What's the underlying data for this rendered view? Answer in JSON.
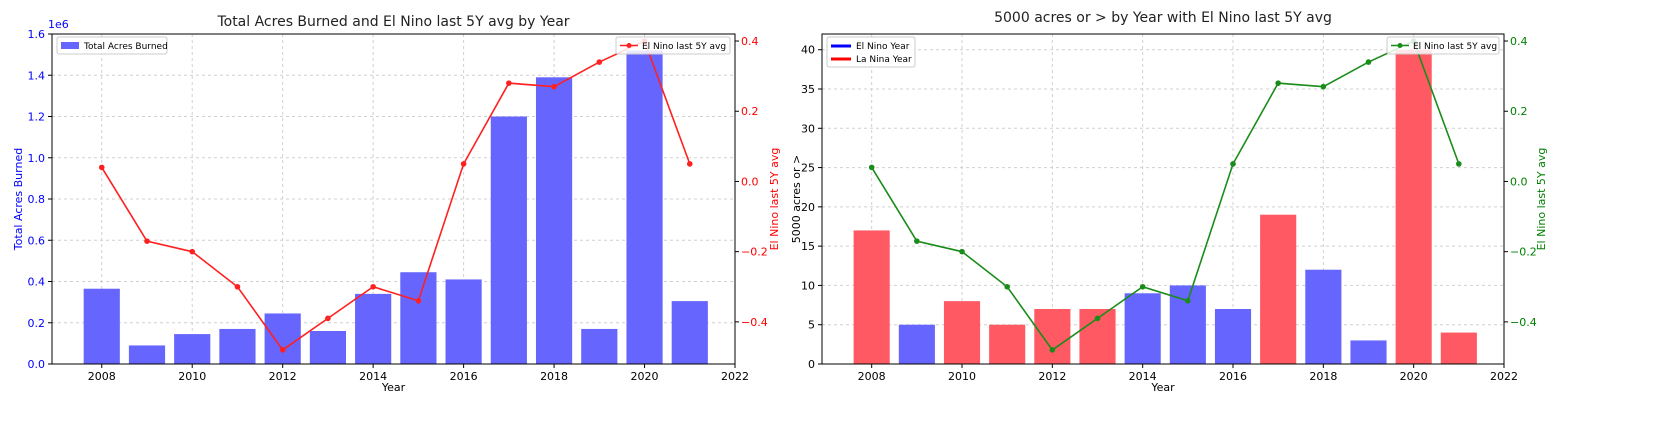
{
  "chart_data": [
    {
      "type": "bar",
      "title": "Total Acres Burned and El Nino last 5Y avg by Year",
      "xlabel": "Year",
      "ylabel": "Total Acres Burned",
      "y2label": "El Nino last 5Y avg",
      "y_offset_label": "1e6",
      "x": [
        2008,
        2009,
        2010,
        2011,
        2012,
        2013,
        2014,
        2015,
        2016,
        2017,
        2018,
        2019,
        2020,
        2021
      ],
      "xlim": [
        2006.9,
        2022
      ],
      "xticks": [
        2008,
        2010,
        2012,
        2014,
        2016,
        2018,
        2020,
        2022
      ],
      "ylim": [
        0,
        1.6
      ],
      "yticks": [
        "0.0",
        "0.2",
        "0.4",
        "0.6",
        "0.8",
        "1.0",
        "1.2",
        "1.4",
        "1.6"
      ],
      "y2lim": [
        -0.52,
        0.42
      ],
      "y2ticks": [
        "−0.4",
        "−0.2",
        "0.0",
        "0.2",
        "0.4"
      ],
      "grid": true,
      "legend_placement": [
        "upper-left",
        "upper-right"
      ],
      "series": [
        {
          "name": "Total Acres Burned",
          "kind": "bar",
          "axis": "left",
          "color": "#6666ff",
          "values": [
            0.365,
            0.09,
            0.145,
            0.17,
            0.245,
            0.16,
            0.34,
            0.445,
            0.41,
            1.2,
            1.39,
            0.17,
            1.52,
            0.305
          ]
        },
        {
          "name": "El Nino last 5Y avg",
          "kind": "line",
          "axis": "right",
          "color": "#ff2020",
          "values": [
            0.04,
            -0.17,
            -0.2,
            -0.3,
            -0.48,
            -0.39,
            -0.3,
            -0.34,
            0.05,
            0.28,
            0.27,
            0.34,
            0.4,
            0.05
          ]
        }
      ],
      "colors": {
        "left_axis": "#0000ff",
        "right_axis": "#ff0000"
      }
    },
    {
      "type": "bar",
      "title": "5000 acres or > by Year with El Nino last 5Y avg",
      "xlabel": "Year",
      "ylabel": "5000 acres or >",
      "y2label": "El Nino last 5Y avg",
      "x": [
        2008,
        2009,
        2010,
        2011,
        2012,
        2013,
        2014,
        2015,
        2016,
        2017,
        2018,
        2019,
        2020,
        2021
      ],
      "xlim": [
        2006.9,
        2022
      ],
      "xticks": [
        2008,
        2010,
        2012,
        2014,
        2016,
        2018,
        2020,
        2022
      ],
      "ylim": [
        0,
        42
      ],
      "yticks": [
        "0",
        "5",
        "10",
        "15",
        "20",
        "25",
        "30",
        "35",
        "40"
      ],
      "y2lim": [
        -0.52,
        0.42
      ],
      "y2ticks": [
        "−0.4",
        "−0.2",
        "0.0",
        "0.2",
        "0.4"
      ],
      "grid": true,
      "legend_placement": [
        "upper-left",
        "upper-right"
      ],
      "series": [
        {
          "name": "5000 acres or >",
          "kind": "bar",
          "axis": "left",
          "values": [
            17,
            5,
            8,
            5,
            7,
            7,
            9,
            10,
            7,
            19,
            12,
            3,
            40,
            4
          ],
          "phase": [
            "La Nina Year",
            "El Nino Year",
            "La Nina Year",
            "La Nina Year",
            "La Nina Year",
            "La Nina Year",
            "El Nino Year",
            "El Nino Year",
            "El Nino Year",
            "La Nina Year",
            "El Nino Year",
            "El Nino Year",
            "La Nina Year",
            "La Nina Year"
          ]
        },
        {
          "name": "El Nino last 5Y avg",
          "kind": "line",
          "axis": "right",
          "color": "#1a8c1a",
          "values": [
            0.04,
            -0.17,
            -0.2,
            -0.3,
            -0.48,
            -0.39,
            -0.3,
            -0.34,
            0.05,
            0.28,
            0.27,
            0.34,
            0.4,
            0.05
          ]
        }
      ],
      "legend_left": [
        {
          "label": "El Nino Year",
          "color": "#0000ff"
        },
        {
          "label": "La Nina Year",
          "color": "#ff0000"
        }
      ],
      "colors": {
        "El Nino Year": "#6666ff",
        "La Nina Year": "#ff5a64",
        "left_axis": "#000000",
        "right_axis": "#008000"
      }
    }
  ]
}
